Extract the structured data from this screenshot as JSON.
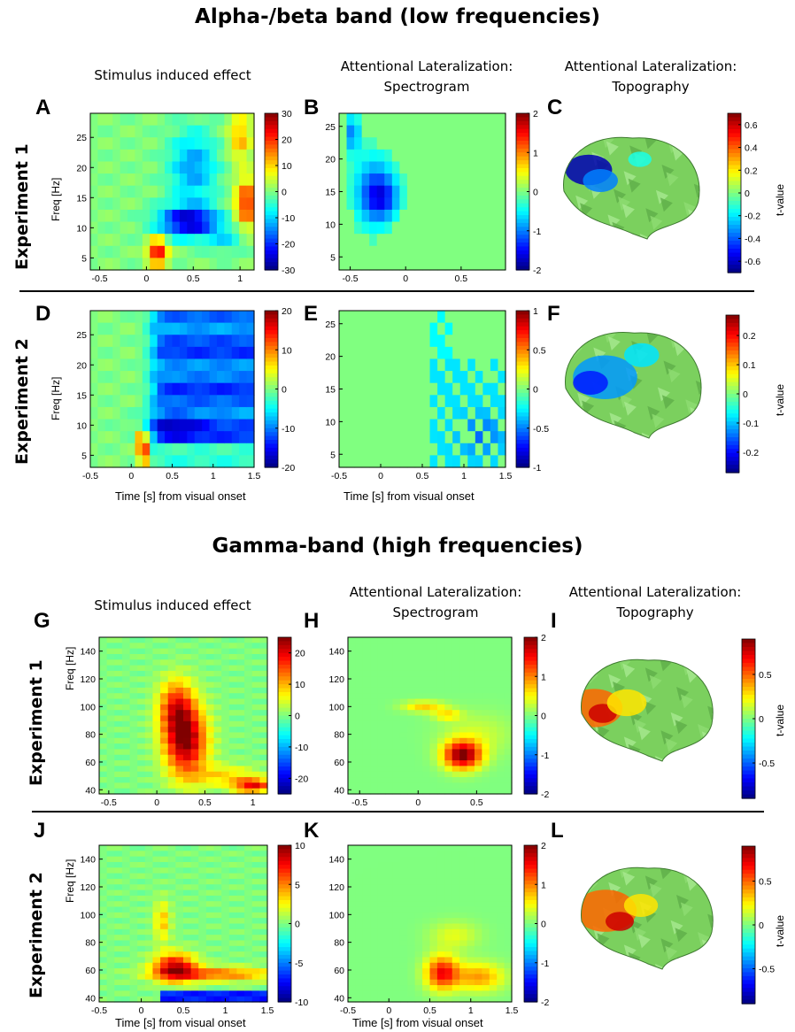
{
  "titles": {
    "low": "Alpha-/beta band (low frequencies)",
    "high": "Gamma-band (high frequencies)"
  },
  "column_headers": {
    "low": {
      "stim": "Stimulus induced effect",
      "spec": [
        "Attentional Lateralization:",
        "Spectrogram"
      ],
      "topo": [
        "Attentional Lateralization:",
        "Topography"
      ]
    },
    "high": {
      "stim": "Stimulus induced effect",
      "spec": [
        "Attentional Lateralization:",
        "Spectrogram"
      ],
      "topo": [
        "Attentional Lateralization:",
        "Topography"
      ]
    }
  },
  "row_labels": [
    "Experiment 1",
    "Experiment 2",
    "Experiment 1",
    "Experiment 2"
  ],
  "y_axis_label": "Freq [Hz]",
  "x_axis_label": "Time [s] from visual onset",
  "tvalue_label": "t-value",
  "panel_letters": [
    "A",
    "B",
    "C",
    "D",
    "E",
    "F",
    "G",
    "H",
    "I",
    "J",
    "K",
    "L"
  ],
  "colors": {
    "jet": [
      "#00008f",
      "#0000ff",
      "#0080ff",
      "#00ffff",
      "#80ff80",
      "#ffff00",
      "#ff8000",
      "#ff0000",
      "#800000"
    ],
    "background_green": "#8cf06c",
    "rule": "#000000"
  },
  "chart_data": [
    {
      "id": "A",
      "type": "heatmap",
      "xticks": [
        "-0.5",
        "0",
        "0.5",
        "1"
      ],
      "xlim": [
        -0.6,
        1.15
      ],
      "yticks": [
        "5",
        "10",
        "15",
        "20",
        "25"
      ],
      "ylim": [
        3,
        29
      ],
      "colorbar": {
        "ticks": [
          "30",
          "20",
          "10",
          "0",
          "-10",
          "-20",
          "-30"
        ],
        "range": [
          -30,
          30
        ]
      }
    },
    {
      "id": "B",
      "type": "heatmap",
      "xticks": [
        "-0.5",
        "0",
        "0.5"
      ],
      "xlim": [
        -0.6,
        0.9
      ],
      "yticks": [
        "5",
        "10",
        "15",
        "20",
        "25"
      ],
      "ylim": [
        3,
        27
      ],
      "colorbar": {
        "ticks": [
          "2",
          "1",
          "0",
          "-1",
          "-2"
        ],
        "range": [
          -2,
          2
        ]
      }
    },
    {
      "id": "C",
      "type": "topography",
      "colorbar": {
        "ticks": [
          "0.6",
          "0.4",
          "0.2",
          "0",
          "-0.2",
          "-0.4",
          "-0.6"
        ],
        "range": [
          -0.7,
          0.7
        ]
      }
    },
    {
      "id": "D",
      "type": "heatmap",
      "xticks": [
        "-0.5",
        "0",
        "0.5",
        "1",
        "1.5"
      ],
      "xlim": [
        -0.5,
        1.5
      ],
      "yticks": [
        "5",
        "10",
        "15",
        "20",
        "25"
      ],
      "ylim": [
        3,
        29
      ],
      "colorbar": {
        "ticks": [
          "20",
          "10",
          "0",
          "-10",
          "-20"
        ],
        "range": [
          -20,
          20
        ]
      }
    },
    {
      "id": "E",
      "type": "heatmap",
      "xticks": [
        "-0.5",
        "0",
        "0.5",
        "1",
        "1.5"
      ],
      "xlim": [
        -0.5,
        1.5
      ],
      "yticks": [
        "5",
        "10",
        "15",
        "20",
        "25"
      ],
      "ylim": [
        3,
        27
      ],
      "colorbar": {
        "ticks": [
          "1",
          "0.5",
          "0",
          "-0.5",
          "-1"
        ],
        "range": [
          -1,
          1
        ]
      }
    },
    {
      "id": "F",
      "type": "topography",
      "colorbar": {
        "ticks": [
          "0.2",
          "0.1",
          "0",
          "-0.1",
          "-0.2"
        ],
        "range": [
          -0.27,
          0.27
        ]
      }
    },
    {
      "id": "G",
      "type": "heatmap",
      "xticks": [
        "-0.5",
        "0",
        "0.5",
        "1"
      ],
      "xlim": [
        -0.6,
        1.15
      ],
      "yticks": [
        "40",
        "60",
        "80",
        "100",
        "120",
        "140"
      ],
      "ylim": [
        37,
        150
      ],
      "colorbar": {
        "ticks": [
          "20",
          "10",
          "0",
          "-10",
          "-20"
        ],
        "range": [
          -25,
          25
        ]
      }
    },
    {
      "id": "H",
      "type": "heatmap",
      "xticks": [
        "-0.5",
        "0",
        "0.5"
      ],
      "xlim": [
        -0.6,
        0.8
      ],
      "yticks": [
        "40",
        "60",
        "80",
        "100",
        "120",
        "140"
      ],
      "ylim": [
        37,
        150
      ],
      "colorbar": {
        "ticks": [
          "2",
          "1",
          "0",
          "-1",
          "-2"
        ],
        "range": [
          -2,
          2
        ]
      }
    },
    {
      "id": "I",
      "type": "topography",
      "colorbar": {
        "ticks": [
          "0.5",
          "0",
          "-0.5"
        ],
        "range": [
          -0.9,
          0.9
        ]
      }
    },
    {
      "id": "J",
      "type": "heatmap",
      "xticks": [
        "-0.5",
        "0",
        "0.5",
        "1",
        "1.5"
      ],
      "xlim": [
        -0.5,
        1.5
      ],
      "yticks": [
        "40",
        "60",
        "80",
        "100",
        "120",
        "140"
      ],
      "ylim": [
        37,
        150
      ],
      "colorbar": {
        "ticks": [
          "10",
          "5",
          "0",
          "-5",
          "-10"
        ],
        "range": [
          -10,
          10
        ]
      }
    },
    {
      "id": "K",
      "type": "heatmap",
      "xticks": [
        "-0.5",
        "0",
        "0.5",
        "1",
        "1.5"
      ],
      "xlim": [
        -0.5,
        1.5
      ],
      "yticks": [
        "40",
        "60",
        "80",
        "100",
        "120",
        "140"
      ],
      "ylim": [
        37,
        150
      ],
      "colorbar": {
        "ticks": [
          "2",
          "1",
          "0",
          "-1",
          "-2"
        ],
        "range": [
          -2,
          2
        ]
      }
    },
    {
      "id": "L",
      "type": "topography",
      "colorbar": {
        "ticks": [
          "0.5",
          "0",
          "-0.5"
        ],
        "range": [
          -0.9,
          0.9
        ]
      }
    }
  ]
}
